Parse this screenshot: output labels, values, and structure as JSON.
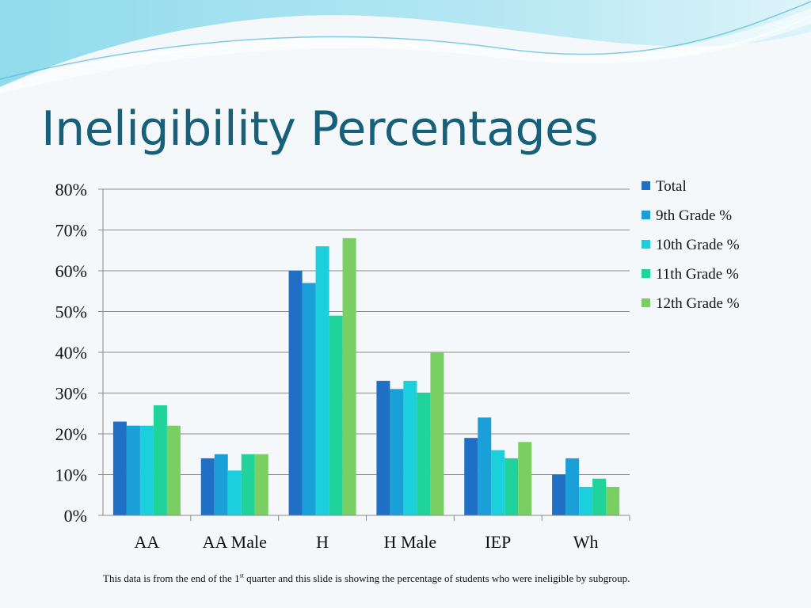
{
  "slide": {
    "title": "Ineligibility Percentages",
    "footnote": {
      "before": "This data is from the end of the 1",
      "superscript": "st",
      "after": " quarter and this slide is showing the percentage of students who were ineligible by subgroup."
    }
  },
  "chart_data": {
    "type": "bar",
    "title": "",
    "xlabel": "",
    "ylabel": "",
    "categories": [
      "AA",
      "AA Male",
      "H",
      "H Male",
      "IEP",
      "Wh"
    ],
    "ylim": [
      0,
      80
    ],
    "yticks": [
      0,
      10,
      20,
      30,
      40,
      50,
      60,
      70,
      80
    ],
    "ytick_labels": [
      "0%",
      "10%",
      "20%",
      "30%",
      "40%",
      "50%",
      "60%",
      "70%",
      "80%"
    ],
    "grid": true,
    "legend_position": "right",
    "series": [
      {
        "name": "Total",
        "color": "#1f6fc5",
        "values": [
          23,
          14,
          60,
          33,
          19,
          10
        ]
      },
      {
        "name": "9th Grade %",
        "color": "#1a9fd8",
        "values": [
          22,
          15,
          57,
          31,
          24,
          14
        ]
      },
      {
        "name": "10th Grade %",
        "color": "#1ccfdc",
        "values": [
          22,
          11,
          66,
          33,
          16,
          7
        ]
      },
      {
        "name": "11th Grade %",
        "color": "#1fd39b",
        "values": [
          27,
          15,
          49,
          30,
          14,
          9
        ]
      },
      {
        "name": "12th Grade %",
        "color": "#79cf62",
        "values": [
          22,
          15,
          68,
          40,
          18,
          7
        ]
      }
    ]
  }
}
